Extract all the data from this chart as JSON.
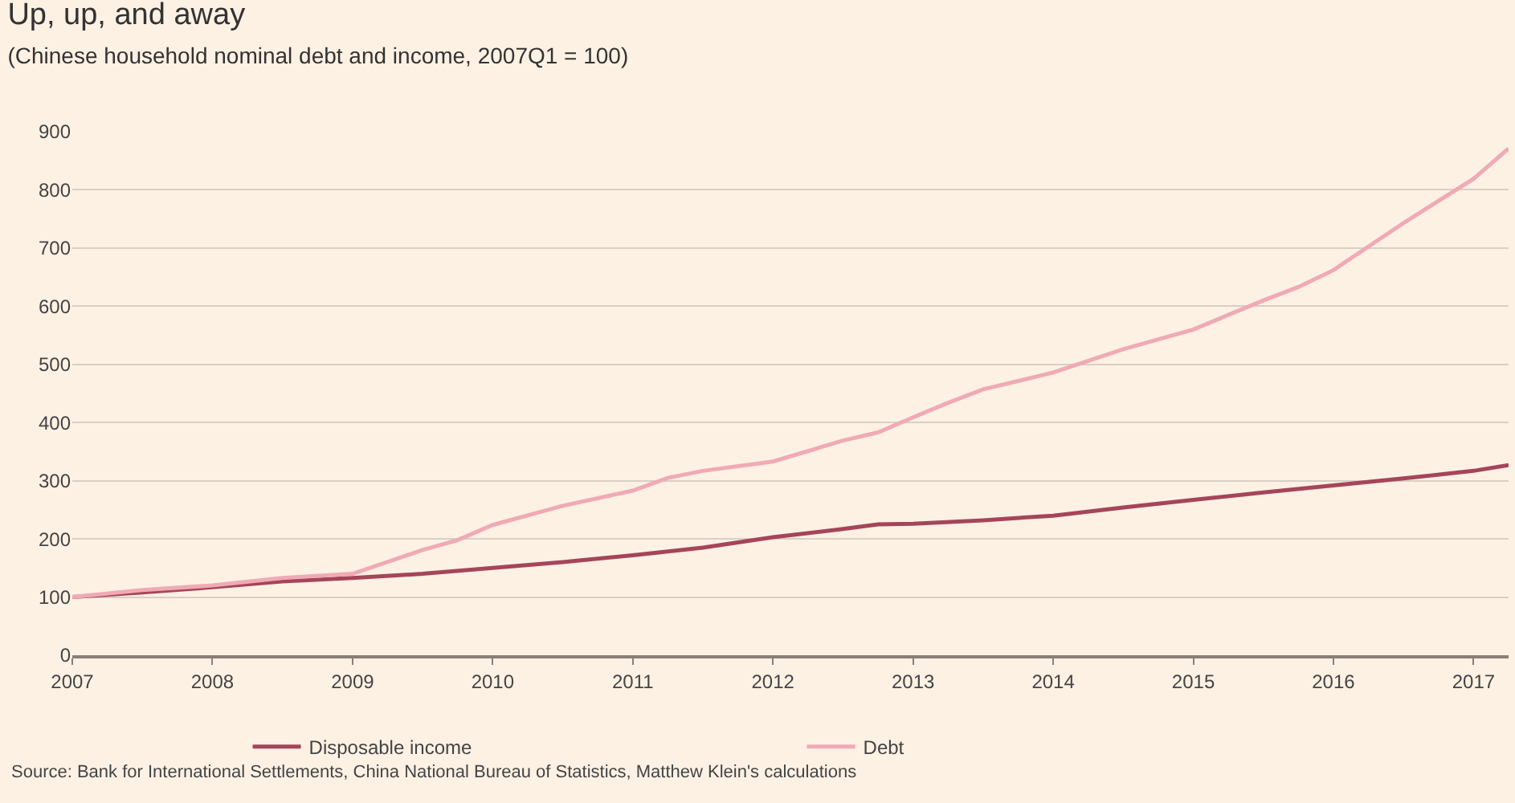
{
  "chart_data": {
    "type": "line",
    "title": "Up, up, and away",
    "subtitle": "(Chinese household nominal debt and income, 2007Q1 = 100)",
    "xlim": [
      2007,
      2017.25
    ],
    "xticks": [
      2007,
      2008,
      2009,
      2010,
      2011,
      2012,
      2013,
      2014,
      2015,
      2016,
      2017
    ],
    "ylim": [
      0,
      900
    ],
    "yticks": [
      0,
      100,
      200,
      300,
      400,
      500,
      600,
      700,
      800,
      900
    ],
    "series": [
      {
        "name": "Disposable income",
        "color": "#a5455a",
        "x": [
          2007,
          2007.5,
          2008,
          2008.5,
          2009,
          2009.5,
          2010,
          2010.5,
          2011,
          2011.5,
          2012,
          2012.5,
          2012.75,
          2013,
          2013.5,
          2014,
          2014.5,
          2015,
          2015.5,
          2016,
          2016.5,
          2017,
          2017.25
        ],
        "values": [
          100,
          108,
          117,
          127,
          133,
          140,
          150,
          160,
          172,
          185,
          203,
          217,
          225,
          226,
          232,
          240,
          254,
          267,
          280,
          292,
          304,
          317,
          327
        ]
      },
      {
        "name": "Debt",
        "color": "#f0aab5",
        "x": [
          2007,
          2007.5,
          2008,
          2008.5,
          2009,
          2009.5,
          2009.75,
          2010,
          2010.5,
          2011,
          2011.25,
          2011.5,
          2012,
          2012.5,
          2012.75,
          2013,
          2013.25,
          2013.5,
          2014,
          2014.5,
          2015,
          2015.5,
          2015.75,
          2016,
          2016.5,
          2017,
          2017.25
        ],
        "values": [
          100,
          112,
          120,
          133,
          140,
          181,
          198,
          224,
          257,
          283,
          305,
          317,
          333,
          369,
          383,
          409,
          434,
          457,
          486,
          526,
          560,
          610,
          633,
          662,
          743,
          819,
          871
        ]
      }
    ],
    "grid": "y",
    "legend": "bottom",
    "line_style": "solid",
    "marker": "none",
    "annotations": [
      "Source: Bank for International Settlements, China National Bureau of Statistics, Matthew Klein's calculations"
    ]
  }
}
